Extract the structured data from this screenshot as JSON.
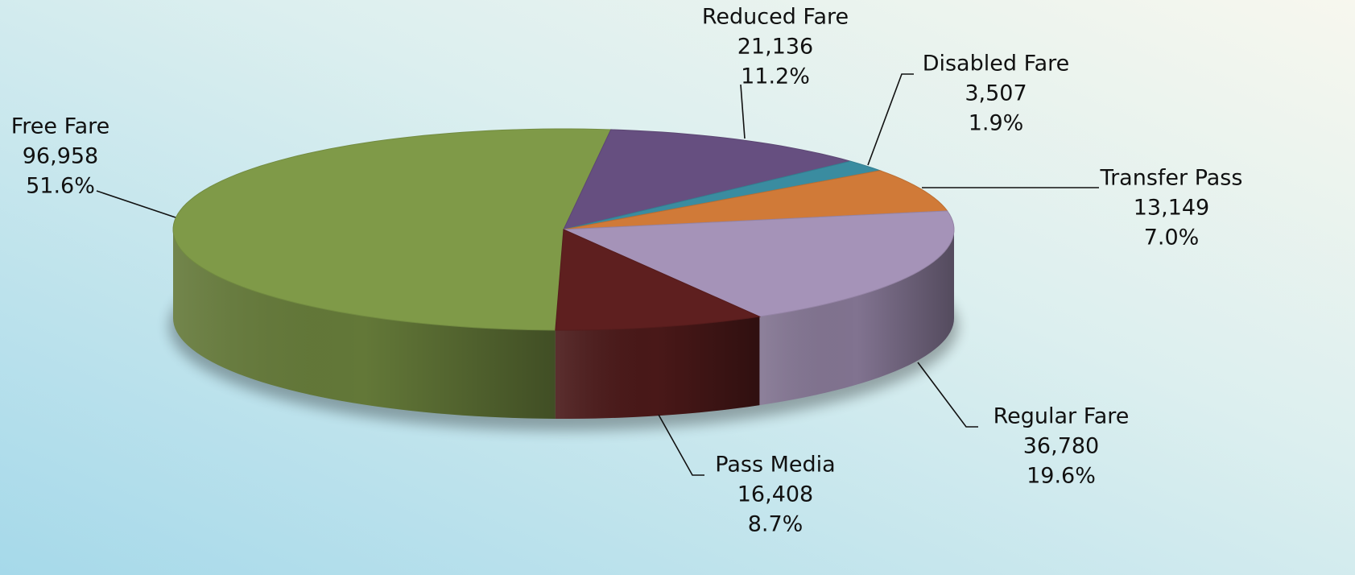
{
  "chart_data": {
    "type": "pie3d",
    "categories": [
      "Free Fare",
      "Reduced Fare",
      "Disabled Fare",
      "Transfer Pass",
      "Regular Fare",
      "Pass Media"
    ],
    "values": [
      51.6,
      11.2,
      1.9,
      7.0,
      19.6,
      8.7
    ],
    "value_labels": [
      "51.6%",
      "11.2%",
      "1.9%",
      "7.0%",
      "19.6%",
      "8.7%"
    ],
    "counts": [
      96958,
      21136,
      3507,
      13149,
      36780,
      16408
    ],
    "count_labels": [
      "96,958",
      "21,136",
      "3,507",
      "13,149",
      "36,780",
      "16,408"
    ],
    "colors": [
      "#7f9a48",
      "#664f80",
      "#3a8ca0",
      "#d07a38",
      "#a593b8",
      "#5e1f1f"
    ]
  }
}
